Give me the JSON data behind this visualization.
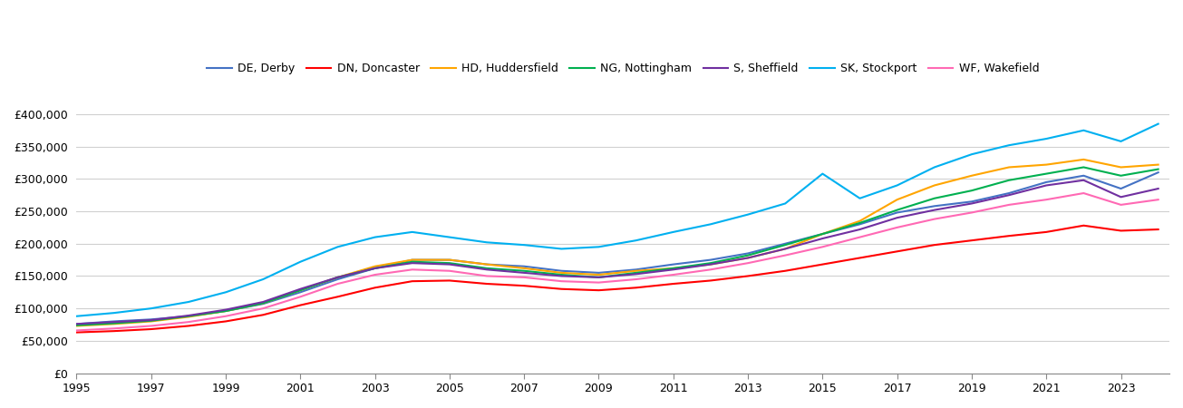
{
  "series": {
    "DE, Derby": {
      "color": "#4472C4",
      "values": [
        76000,
        80000,
        83000,
        88000,
        96000,
        107000,
        125000,
        145000,
        162000,
        175000,
        175000,
        168000,
        165000,
        158000,
        155000,
        160000,
        168000,
        175000,
        185000,
        200000,
        215000,
        230000,
        248000,
        258000,
        265000,
        278000,
        295000,
        305000,
        285000,
        310000
      ]
    },
    "DN, Doncaster": {
      "color": "#FF0000",
      "values": [
        63000,
        65000,
        68000,
        73000,
        80000,
        90000,
        105000,
        118000,
        132000,
        142000,
        143000,
        138000,
        135000,
        130000,
        128000,
        132000,
        138000,
        143000,
        150000,
        158000,
        168000,
        178000,
        188000,
        198000,
        205000,
        212000,
        218000,
        228000,
        220000,
        222000
      ]
    },
    "HD, Huddersfield": {
      "color": "#FFA500",
      "values": [
        73000,
        76000,
        80000,
        87000,
        96000,
        108000,
        128000,
        148000,
        165000,
        175000,
        175000,
        168000,
        162000,
        155000,
        152000,
        158000,
        162000,
        168000,
        178000,
        192000,
        215000,
        235000,
        268000,
        290000,
        305000,
        318000,
        322000,
        330000,
        318000,
        322000
      ]
    },
    "NG, Nottingham": {
      "color": "#00B050",
      "values": [
        74000,
        77000,
        81000,
        88000,
        96000,
        108000,
        128000,
        148000,
        162000,
        172000,
        170000,
        162000,
        158000,
        152000,
        148000,
        155000,
        162000,
        170000,
        182000,
        198000,
        215000,
        232000,
        252000,
        270000,
        282000,
        298000,
        308000,
        318000,
        305000,
        315000
      ]
    },
    "S, Sheffield": {
      "color": "#7030A0",
      "values": [
        76000,
        79000,
        82000,
        89000,
        98000,
        110000,
        130000,
        148000,
        162000,
        170000,
        168000,
        160000,
        155000,
        150000,
        148000,
        153000,
        160000,
        168000,
        178000,
        192000,
        208000,
        222000,
        240000,
        252000,
        262000,
        275000,
        290000,
        298000,
        272000,
        285000
      ]
    },
    "SK, Stockport": {
      "color": "#00B0F0",
      "values": [
        88000,
        93000,
        100000,
        110000,
        125000,
        145000,
        172000,
        195000,
        210000,
        218000,
        210000,
        202000,
        198000,
        192000,
        195000,
        205000,
        218000,
        230000,
        245000,
        262000,
        308000,
        270000,
        290000,
        318000,
        338000,
        352000,
        362000,
        375000,
        358000,
        385000
      ]
    },
    "WF, Wakefield": {
      "color": "#FF69B4",
      "values": [
        66000,
        69000,
        73000,
        79000,
        88000,
        100000,
        118000,
        138000,
        152000,
        160000,
        158000,
        150000,
        148000,
        142000,
        140000,
        145000,
        152000,
        160000,
        170000,
        182000,
        195000,
        210000,
        225000,
        238000,
        248000,
        260000,
        268000,
        278000,
        260000,
        268000
      ]
    }
  },
  "years": [
    1995,
    1996,
    1997,
    1998,
    1999,
    2000,
    2001,
    2002,
    2003,
    2004,
    2005,
    2006,
    2007,
    2008,
    2009,
    2010,
    2011,
    2012,
    2013,
    2014,
    2015,
    2016,
    2017,
    2018,
    2019,
    2020,
    2021,
    2022,
    2023,
    2024
  ],
  "yticks": [
    0,
    50000,
    100000,
    150000,
    200000,
    250000,
    300000,
    350000,
    400000
  ],
  "xticks": [
    1995,
    1997,
    1999,
    2001,
    2003,
    2005,
    2007,
    2009,
    2011,
    2013,
    2015,
    2017,
    2019,
    2021,
    2023
  ],
  "ylim": [
    0,
    420000
  ],
  "xlim_min": 1995,
  "xlim_max": 2024.3,
  "background_color": "#ffffff",
  "grid_color": "#d0d0d0",
  "linewidth": 1.5,
  "legend_fontsize": 9,
  "tick_fontsize": 9
}
